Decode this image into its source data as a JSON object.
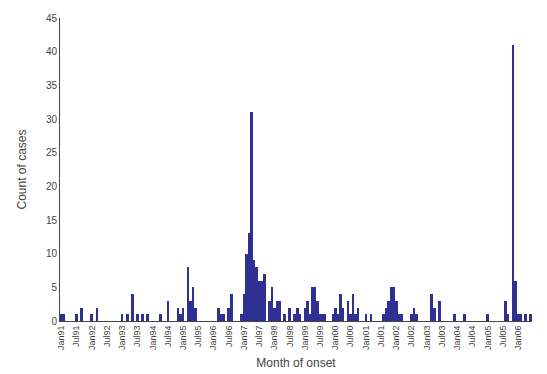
{
  "chart_data": {
    "type": "bar",
    "xlabel": "Month of onset",
    "ylabel": "Count of cases",
    "color": "#2e3191",
    "grid": false,
    "ylim": [
      0,
      45
    ],
    "yticks": [
      0,
      5,
      10,
      15,
      20,
      25,
      30,
      35,
      40,
      45
    ],
    "categories": [
      "Jan91",
      null,
      null,
      null,
      null,
      null,
      "Jul91",
      null,
      null,
      null,
      null,
      null,
      "Jan92",
      null,
      null,
      null,
      null,
      null,
      "Jul92",
      null,
      null,
      null,
      null,
      null,
      "Jan93",
      null,
      null,
      null,
      null,
      null,
      "Jul93",
      null,
      null,
      null,
      null,
      null,
      "Jan94",
      null,
      null,
      null,
      null,
      null,
      "Jul94",
      null,
      null,
      null,
      null,
      null,
      "Jan95",
      null,
      null,
      null,
      null,
      null,
      "Jul95",
      null,
      null,
      null,
      null,
      null,
      "Jan96",
      null,
      null,
      null,
      null,
      null,
      "Jul96",
      null,
      null,
      null,
      null,
      null,
      "Jan97",
      null,
      null,
      null,
      null,
      null,
      "Jul97",
      null,
      null,
      null,
      null,
      null,
      "Jan98",
      null,
      null,
      null,
      null,
      null,
      "Jul98",
      null,
      null,
      null,
      null,
      null,
      "Jan99",
      null,
      null,
      null,
      null,
      null,
      "Jul99",
      null,
      null,
      null,
      null,
      null,
      "Jan00",
      null,
      null,
      null,
      null,
      null,
      "Jul00",
      null,
      null,
      null,
      null,
      null,
      "Jan01",
      null,
      null,
      null,
      null,
      null,
      "Jul01",
      null,
      null,
      null,
      null,
      null,
      "Jan02",
      null,
      null,
      null,
      null,
      null,
      "Jul02",
      null,
      null,
      null,
      null,
      null,
      "Jan03",
      null,
      null,
      null,
      null,
      null,
      "Jul03",
      null,
      null,
      null,
      null,
      null,
      "Jan04",
      null,
      null,
      null,
      null,
      null,
      "Jul04",
      null,
      null,
      null,
      null,
      null,
      "Jan05",
      null,
      null,
      null,
      null,
      null,
      "Jul05",
      null,
      null,
      null,
      null,
      null,
      "Jan06",
      null,
      null,
      null,
      null,
      null
    ],
    "values": [
      1,
      1,
      0,
      0,
      0,
      0,
      1,
      0,
      2,
      0,
      0,
      0,
      1,
      0,
      2,
      0,
      0,
      0,
      0,
      0,
      0,
      0,
      0,
      0,
      1,
      0,
      1,
      0,
      4,
      0,
      1,
      0,
      1,
      0,
      1,
      0,
      0,
      0,
      0,
      1,
      0,
      0,
      3,
      0,
      0,
      0,
      2,
      1,
      2,
      0,
      8,
      3,
      5,
      2,
      0,
      0,
      0,
      0,
      0,
      0,
      0,
      0,
      2,
      1,
      1,
      0,
      2,
      4,
      0,
      0,
      0,
      1,
      4,
      10,
      13,
      31,
      9,
      8,
      6,
      6,
      7,
      0,
      3,
      5,
      2,
      3,
      3,
      0,
      1,
      0,
      2,
      0,
      1,
      2,
      1,
      0,
      2,
      3,
      1,
      5,
      5,
      3,
      1,
      1,
      1,
      0,
      0,
      1,
      2,
      1,
      4,
      2,
      0,
      3,
      1,
      4,
      1,
      2,
      0,
      0,
      1,
      0,
      1,
      0,
      0,
      0,
      0,
      1,
      2,
      3,
      5,
      5,
      3,
      1,
      1,
      0,
      0,
      0,
      1,
      2,
      1,
      0,
      0,
      0,
      0,
      0,
      4,
      2,
      0,
      3,
      0,
      0,
      0,
      0,
      0,
      1,
      0,
      0,
      0,
      1,
      0,
      0,
      0,
      0,
      0,
      0,
      0,
      0,
      1,
      0,
      0,
      0,
      0,
      0,
      0,
      3,
      1,
      0,
      41,
      6,
      1,
      1,
      0,
      1,
      0,
      1
    ]
  }
}
